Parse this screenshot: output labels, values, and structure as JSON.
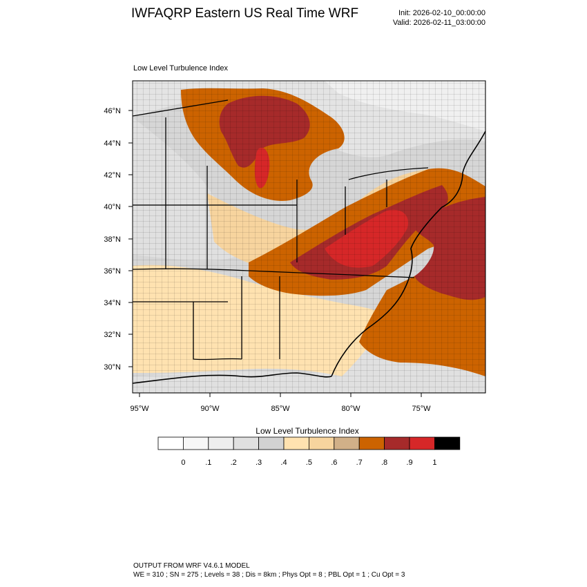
{
  "header": {
    "title": "IWFAQRP Eastern US Real Time WRF",
    "init": "Init: 2026-02-10_00:00:00",
    "valid": "Valid: 2026-02-11_03:00:00"
  },
  "map": {
    "field_label": "Low Level Turbulence Index",
    "lat_labels": [
      "46°N",
      "44°N",
      "42°N",
      "40°N",
      "38°N",
      "36°N",
      "34°N",
      "32°N",
      "30°N"
    ],
    "lon_labels": [
      "95°W",
      "90°W",
      "85°W",
      "80°W",
      "75°W"
    ]
  },
  "colorbar": {
    "title": "Low Level Turbulence Index",
    "tick_labels": [
      "0",
      ".1",
      ".2",
      ".3",
      ".4",
      ".5",
      ".6",
      ".7",
      ".8",
      ".9",
      "1"
    ],
    "colors": [
      "#ffffff",
      "#f7f7f7",
      "#eeeeee",
      "#e0e0e0",
      "#d2d2d2",
      "#ffe2b0",
      "#f7d49e",
      "#d1b088",
      "#cc6300",
      "#a62a2a",
      "#d62728",
      "#000000"
    ]
  },
  "footer": {
    "line1": "OUTPUT FROM WRF V4.6.1 MODEL",
    "line2": "WE = 310 ; SN = 275 ; Levels = 38 ; Dis = 8km ; Phys Opt = 8 ; PBL Opt = 1 ; Cu Opt = 3"
  }
}
